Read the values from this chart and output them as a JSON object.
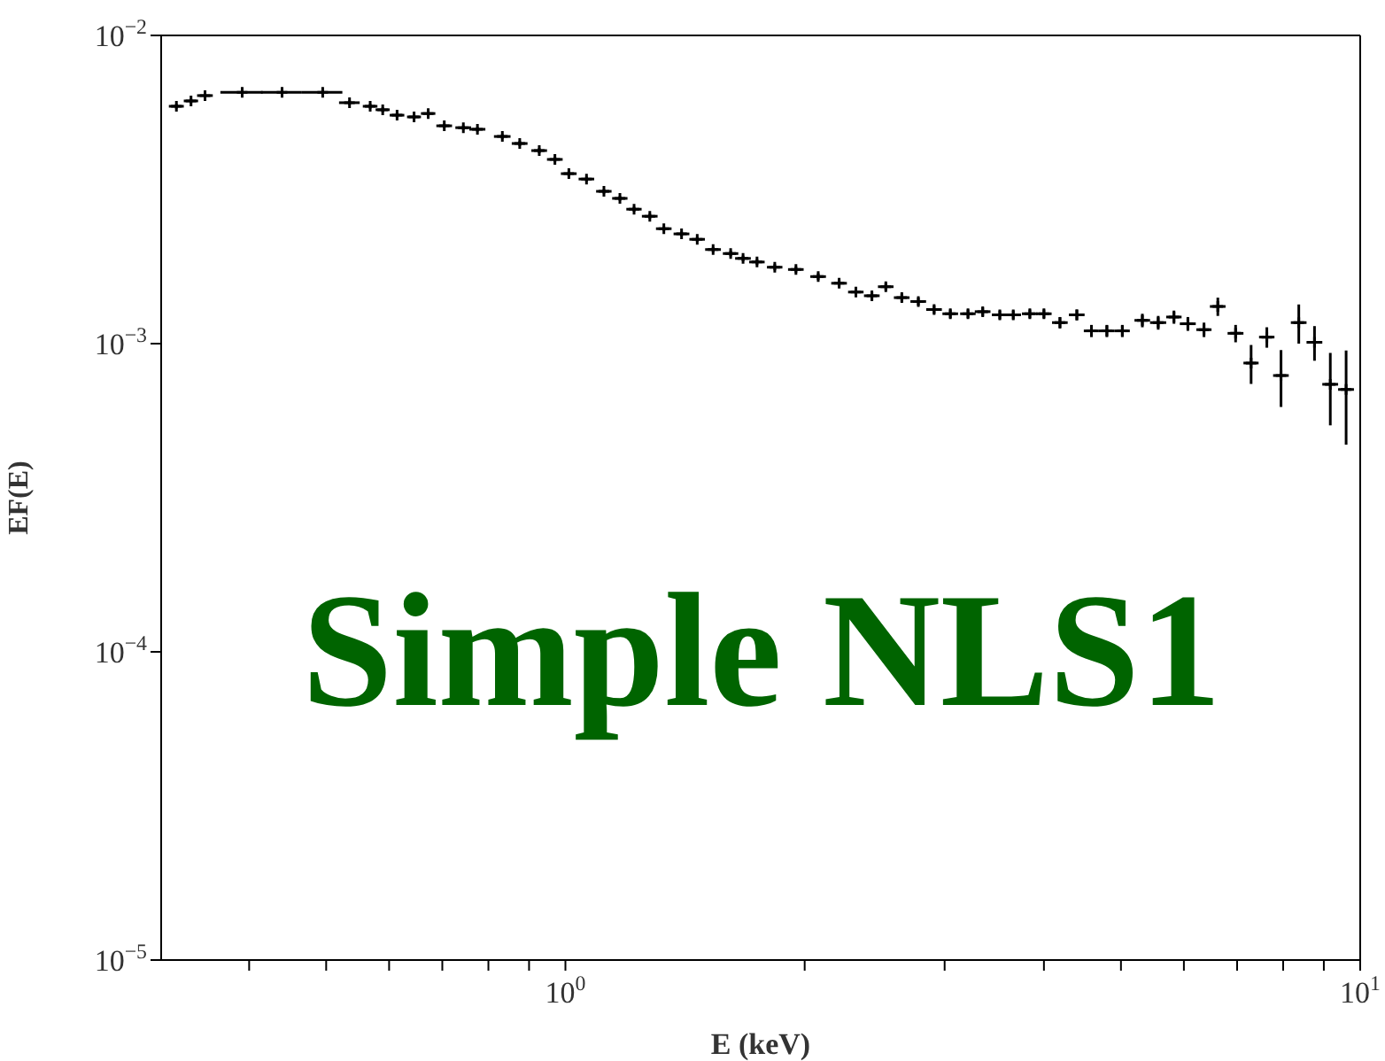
{
  "chart_data": {
    "type": "scatter",
    "xlabel": "E (keV)",
    "ylabel": "EF(E)",
    "annotations": [
      "Simple NLS1"
    ],
    "log": "xy",
    "grid": false,
    "legend": false,
    "marker": "cross",
    "xlim": [
      0.31,
      10
    ],
    "ylim": [
      1e-05,
      0.01
    ],
    "xticks": [
      {
        "value": 0.4,
        "label": null
      },
      {
        "value": 0.5,
        "label": null
      },
      {
        "value": 0.6,
        "label": null
      },
      {
        "value": 0.7,
        "label": null
      },
      {
        "value": 0.8,
        "label": null
      },
      {
        "value": 0.9,
        "label": null
      },
      {
        "value": 1,
        "label": "10$^{0}$"
      },
      {
        "value": 2,
        "label": null
      },
      {
        "value": 3,
        "label": null
      },
      {
        "value": 4,
        "label": null
      },
      {
        "value": 5,
        "label": null
      },
      {
        "value": 6,
        "label": null
      },
      {
        "value": 7,
        "label": null
      },
      {
        "value": 8,
        "label": null
      },
      {
        "value": 9,
        "label": null
      },
      {
        "value": 10,
        "label": "10$^{1}$"
      }
    ],
    "yticks": [
      {
        "value": 1e-05,
        "label": "10$^{−5}$"
      },
      {
        "value": 0.0001,
        "label": "10$^{−4}$"
      },
      {
        "value": 0.001,
        "label": "10$^{−3}$"
      },
      {
        "value": 0.01,
        "label": "10$^{−2}$"
      }
    ],
    "x": [
      0.324,
      0.338,
      0.352,
      0.392,
      0.44,
      0.495,
      0.535,
      0.568,
      0.589,
      0.614,
      0.645,
      0.672,
      0.704,
      0.744,
      0.775,
      0.833,
      0.876,
      0.927,
      0.97,
      1.01,
      1.063,
      1.118,
      1.171,
      1.22,
      1.277,
      1.33,
      1.4,
      1.465,
      1.534,
      1.614,
      1.673,
      1.742,
      1.834,
      1.95,
      2.08,
      2.21,
      2.32,
      2.43,
      2.53,
      2.65,
      2.78,
      2.91,
      3.05,
      3.21,
      3.35,
      3.52,
      3.66,
      3.84,
      4.0,
      4.19,
      4.4,
      4.59,
      4.8,
      5.02,
      5.32,
      5.57,
      5.83,
      6.07,
      6.36,
      6.62,
      6.97,
      7.29,
      7.63,
      7.95,
      8.37,
      8.76,
      9.17,
      9.6
    ],
    "values": [
      0.00589,
      0.00613,
      0.00638,
      0.00654,
      0.00654,
      0.00654,
      0.00605,
      0.00589,
      0.00574,
      0.00551,
      0.00544,
      0.00558,
      0.00509,
      0.00502,
      0.00496,
      0.0047,
      0.00446,
      0.00423,
      0.00396,
      0.00356,
      0.00342,
      0.00312,
      0.00296,
      0.00273,
      0.00259,
      0.00236,
      0.00227,
      0.00218,
      0.00202,
      0.00196,
      0.00189,
      0.00184,
      0.00177,
      0.00174,
      0.00165,
      0.00157,
      0.00147,
      0.00143,
      0.00153,
      0.00141,
      0.00137,
      0.00129,
      0.00125,
      0.00125,
      0.00127,
      0.00124,
      0.00124,
      0.00125,
      0.00125,
      0.00117,
      0.00124,
      0.0011,
      0.0011,
      0.0011,
      0.00119,
      0.00117,
      0.00122,
      0.00116,
      0.00111,
      0.00132,
      0.00108,
      0.000865,
      0.00105,
      0.000788,
      0.00117,
      0.00101,
      0.000738,
      0.00071
    ],
    "errors": [
      0.0001,
      0.0001,
      0.0001,
      0.0001,
      0.0001,
      0.0001,
      0.0001,
      0.0001,
      0.0001,
      0.0001,
      0.0001,
      0.0001,
      8e-05,
      8e-05,
      8e-05,
      8e-05,
      8e-05,
      8e-05,
      8e-05,
      6e-05,
      6e-05,
      5e-05,
      5e-05,
      5e-05,
      5e-05,
      4e-05,
      4e-05,
      4e-05,
      4e-05,
      4e-05,
      4e-05,
      4e-05,
      4e-05,
      4e-05,
      4e-05,
      4e-05,
      4e-05,
      4e-05,
      4e-05,
      4e-05,
      4e-05,
      4e-05,
      4e-05,
      4e-05,
      4e-05,
      4e-05,
      4e-05,
      4e-05,
      4e-05,
      5e-05,
      5e-05,
      5e-05,
      5e-05,
      5e-05,
      6e-05,
      6e-05,
      6e-05,
      6e-05,
      6e-05,
      9e-05,
      7e-05,
      0.000125,
      8e-05,
      0.000165,
      0.00017,
      0.00013,
      0.000195,
      0.00024
    ],
    "xerrors": [
      0.007,
      0.007,
      0.008,
      0.024,
      0.026,
      0.029,
      0.016,
      0.012,
      0.012,
      0.013,
      0.013,
      0.014,
      0.016,
      0.017,
      0.018,
      0.02,
      0.02,
      0.021,
      0.022,
      0.023,
      0.024,
      0.025,
      0.026,
      0.027,
      0.029,
      0.03,
      0.032,
      0.033,
      0.035,
      0.036,
      0.038,
      0.039,
      0.041,
      0.044,
      0.047,
      0.05,
      0.052,
      0.055,
      0.057,
      0.06,
      0.063,
      0.066,
      0.069,
      0.072,
      0.076,
      0.08,
      0.083,
      0.087,
      0.09,
      0.095,
      0.1,
      0.1,
      0.11,
      0.11,
      0.12,
      0.13,
      0.13,
      0.14,
      0.14,
      0.15,
      0.16,
      0.16,
      0.17,
      0.18,
      0.19,
      0.2,
      0.21,
      0.22
    ]
  }
}
